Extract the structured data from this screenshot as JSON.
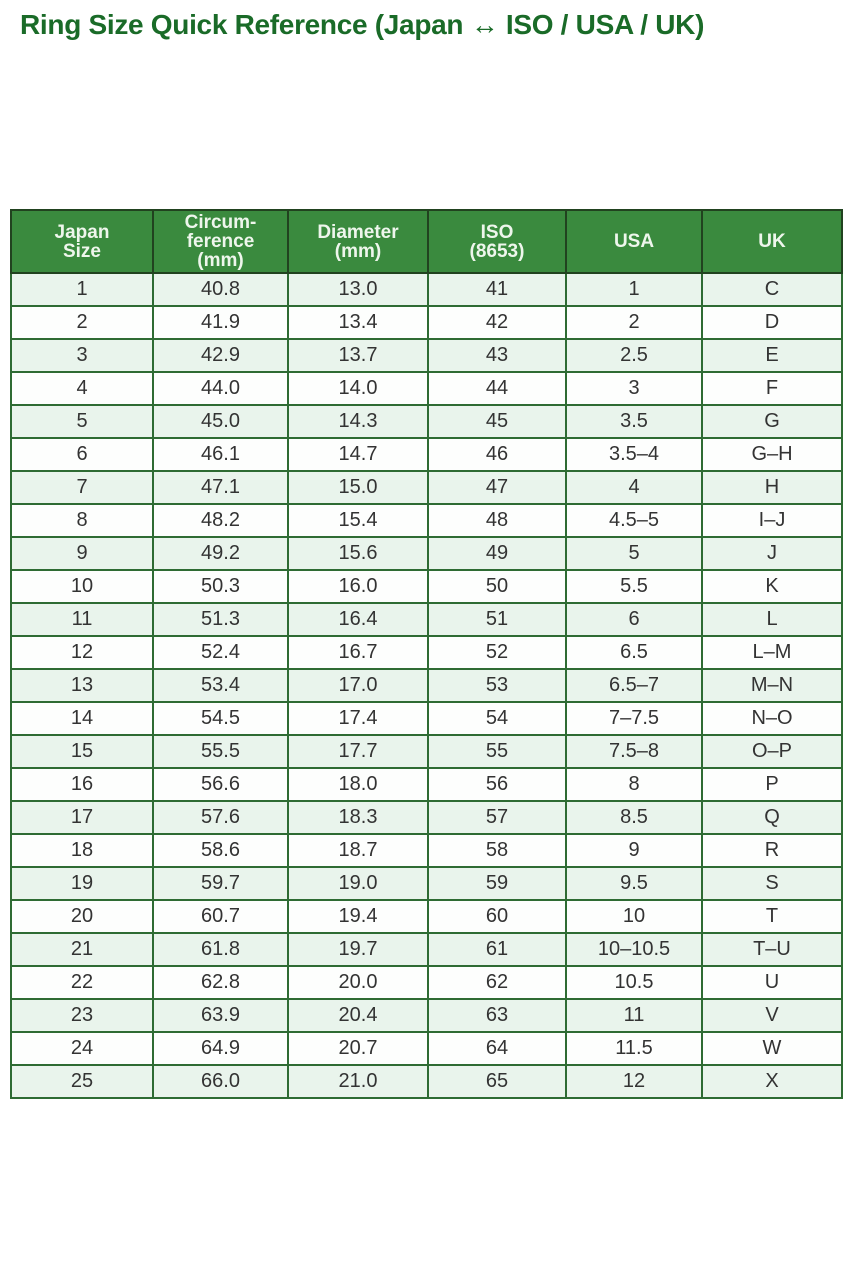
{
  "title": "Ring Size Quick Reference (Japan ↔ ISO / USA / UK)",
  "colors": {
    "title_text": "#1a6b28",
    "header_bg": "#3a8a3e",
    "header_text": "#eef6ec",
    "row_stripe_bg": "#e9f4ec",
    "row_plain_bg": "#fdfefd",
    "grid_border": "#2e6b33",
    "outer_border": "#21421f",
    "body_text": "#333333"
  },
  "table": {
    "columns": [
      {
        "id": "japan",
        "lines": [
          "Japan",
          "Size"
        ]
      },
      {
        "id": "circumference",
        "lines": [
          "Circum-",
          "ference",
          "(mm)"
        ]
      },
      {
        "id": "diameter",
        "lines": [
          "Diameter",
          "(mm)"
        ]
      },
      {
        "id": "iso",
        "lines": [
          "ISO",
          "(8653)"
        ]
      },
      {
        "id": "usa",
        "lines": [
          "USA"
        ]
      },
      {
        "id": "uk",
        "lines": [
          "UK"
        ]
      }
    ],
    "rows": [
      [
        "1",
        "40.8",
        "13.0",
        "41",
        "1",
        "C"
      ],
      [
        "2",
        "41.9",
        "13.4",
        "42",
        "2",
        "D"
      ],
      [
        "3",
        "42.9",
        "13.7",
        "43",
        "2.5",
        "E"
      ],
      [
        "4",
        "44.0",
        "14.0",
        "44",
        "3",
        "F"
      ],
      [
        "5",
        "45.0",
        "14.3",
        "45",
        "3.5",
        "G"
      ],
      [
        "6",
        "46.1",
        "14.7",
        "46",
        "3.5–4",
        "G–H"
      ],
      [
        "7",
        "47.1",
        "15.0",
        "47",
        "4",
        "H"
      ],
      [
        "8",
        "48.2",
        "15.4",
        "48",
        "4.5–5",
        "I–J"
      ],
      [
        "9",
        "49.2",
        "15.6",
        "49",
        "5",
        "J"
      ],
      [
        "10",
        "50.3",
        "16.0",
        "50",
        "5.5",
        "K"
      ],
      [
        "11",
        "51.3",
        "16.4",
        "51",
        "6",
        "L"
      ],
      [
        "12",
        "52.4",
        "16.7",
        "52",
        "6.5",
        "L–M"
      ],
      [
        "13",
        "53.4",
        "17.0",
        "53",
        "6.5–7",
        "M–N"
      ],
      [
        "14",
        "54.5",
        "17.4",
        "54",
        "7–7.5",
        "N–O"
      ],
      [
        "15",
        "55.5",
        "17.7",
        "55",
        "7.5–8",
        "O–P"
      ],
      [
        "16",
        "56.6",
        "18.0",
        "56",
        "8",
        "P"
      ],
      [
        "17",
        "57.6",
        "18.3",
        "57",
        "8.5",
        "Q"
      ],
      [
        "18",
        "58.6",
        "18.7",
        "58",
        "9",
        "R"
      ],
      [
        "19",
        "59.7",
        "19.0",
        "59",
        "9.5",
        "S"
      ],
      [
        "20",
        "60.7",
        "19.4",
        "60",
        "10",
        "T"
      ],
      [
        "21",
        "61.8",
        "19.7",
        "61",
        "10–10.5",
        "T–U"
      ],
      [
        "22",
        "62.8",
        "20.0",
        "62",
        "10.5",
        "U"
      ],
      [
        "23",
        "63.9",
        "20.4",
        "63",
        "11",
        "V"
      ],
      [
        "24",
        "64.9",
        "20.7",
        "64",
        "11.5",
        "W"
      ],
      [
        "25",
        "66.0",
        "21.0",
        "65",
        "12",
        "X"
      ]
    ]
  }
}
